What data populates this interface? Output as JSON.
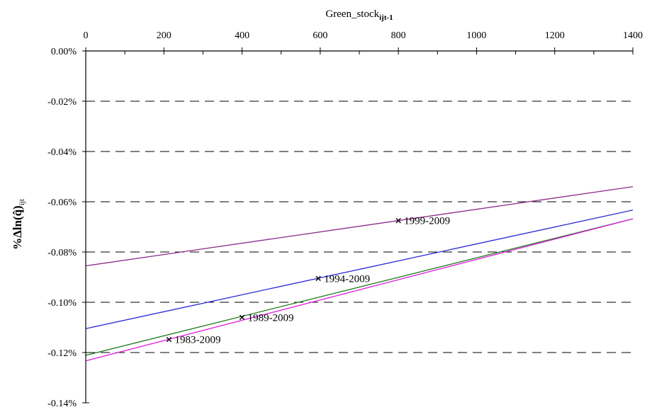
{
  "chart_data": {
    "type": "line",
    "x_axis": {
      "label": "Green_stock",
      "label_subscript": "ijt-1",
      "position": "top",
      "range": [
        0,
        1400
      ],
      "ticks": [
        0,
        200,
        400,
        600,
        800,
        1000,
        1200,
        1400
      ]
    },
    "y_axis": {
      "label": "%Δln(q̂)",
      "label_subscript": "ijt",
      "range": [
        -0.14,
        0.0
      ],
      "ticks": [
        0.0,
        -0.02,
        -0.04,
        -0.06,
        -0.08,
        -0.1,
        -0.12,
        -0.14
      ],
      "tick_labels": [
        "0.00%",
        "-0.02%",
        "-0.04%",
        "-0.06%",
        "-0.08%",
        "-0.10%",
        "-0.12%",
        "-0.14%"
      ],
      "gridlines": "dashed"
    },
    "series": [
      {
        "name": "1999-2009",
        "color": "#8b2a8b",
        "x": [
          0,
          1400
        ],
        "y": [
          -0.0855,
          -0.054
        ],
        "marker_x": 800,
        "marker_y": -0.0675
      },
      {
        "name": "1994-2009",
        "color": "#2a2ad4",
        "x": [
          0,
          1400
        ],
        "y": [
          -0.1105,
          -0.0633
        ],
        "marker_x": 595,
        "marker_y": -0.0905
      },
      {
        "name": "1989-2009",
        "color": "#1f7a1f",
        "x": [
          0,
          1400
        ],
        "y": [
          -0.1211,
          -0.0668
        ],
        "marker_x": 400,
        "marker_y": -0.106
      },
      {
        "name": "1983-2009",
        "color": "#e020e0",
        "x": [
          0,
          1400
        ],
        "y": [
          -0.1233,
          -0.0668
        ],
        "marker_x": 213,
        "marker_y": -0.1148
      }
    ]
  }
}
